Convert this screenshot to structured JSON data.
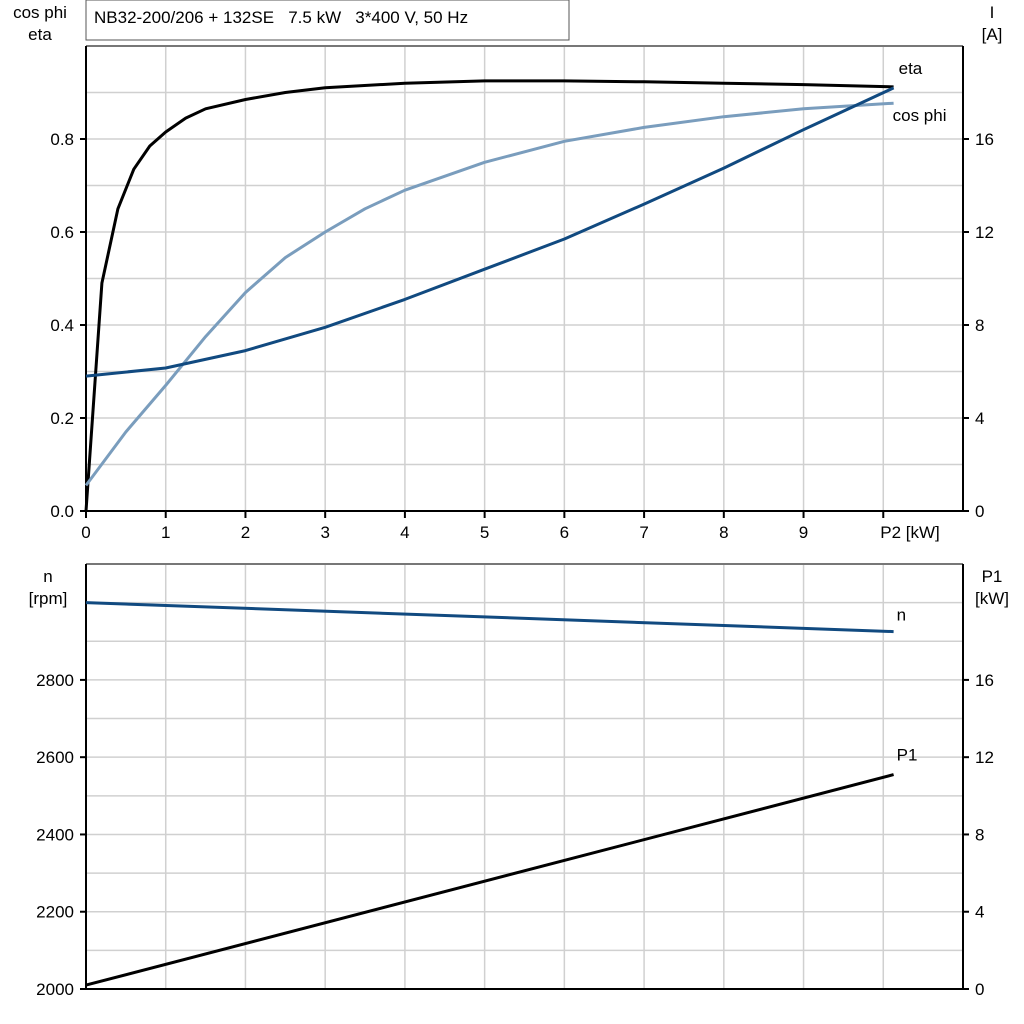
{
  "title": "NB32-200/206 + 132SE   7.5 kW   3*400 V, 50 Hz",
  "colors": {
    "eta": "#000000",
    "cos_phi": "#7a9dbd",
    "current": "#114a80",
    "n": "#114a80",
    "p1": "#000000",
    "grid": "#d0d0d0"
  },
  "chart_data": [
    {
      "type": "line",
      "xlabel": "P2 [kW]",
      "ylabel_left": [
        "cos phi",
        "eta"
      ],
      "ylabel_right": [
        "I",
        "[A]"
      ],
      "xlim": [
        0,
        11
      ],
      "ylim_left": [
        0,
        1.0
      ],
      "ylim_right": [
        0,
        20
      ],
      "x_ticks": [
        "0",
        "1",
        "2",
        "3",
        "4",
        "5",
        "6",
        "7",
        "8",
        "9"
      ],
      "y_ticks_left": [
        "0.0",
        "0.2",
        "0.4",
        "0.6",
        "0.8"
      ],
      "y_ticks_right": [
        "0",
        "4",
        "8",
        "12",
        "16"
      ],
      "grid": true,
      "series": [
        {
          "name": "eta",
          "axis": "left",
          "x": [
            0,
            0.2,
            0.4,
            0.6,
            0.8,
            1,
            1.25,
            1.5,
            2,
            2.5,
            3,
            4,
            5,
            6,
            7,
            8,
            9,
            10.13
          ],
          "y": [
            0,
            0.49,
            0.65,
            0.735,
            0.785,
            0.815,
            0.845,
            0.865,
            0.885,
            0.9,
            0.91,
            0.92,
            0.925,
            0.925,
            0.923,
            0.92,
            0.917,
            0.912
          ]
        },
        {
          "name": "cos phi",
          "axis": "left",
          "x": [
            0,
            0.5,
            1,
            1.5,
            2,
            2.5,
            3,
            3.5,
            4,
            5,
            6,
            7,
            8,
            9,
            10.13
          ],
          "y": [
            0.055,
            0.17,
            0.27,
            0.375,
            0.47,
            0.545,
            0.6,
            0.65,
            0.69,
            0.75,
            0.795,
            0.825,
            0.848,
            0.865,
            0.877
          ]
        },
        {
          "name": "I",
          "axis": "right",
          "x": [
            0,
            1,
            2,
            3,
            4,
            5,
            6,
            7,
            8,
            9,
            10.13
          ],
          "y": [
            5.8,
            6.15,
            6.9,
            7.9,
            9.1,
            10.4,
            11.7,
            13.2,
            14.75,
            16.4,
            18.2
          ]
        }
      ]
    },
    {
      "type": "line",
      "ylabel_left": [
        "n",
        "[rpm]"
      ],
      "ylabel_right": [
        "P1",
        "[kW]"
      ],
      "xlim": [
        0,
        11
      ],
      "ylim_left": [
        2000,
        3100
      ],
      "ylim_right": [
        0,
        22
      ],
      "y_ticks_left": [
        "2000",
        "2200",
        "2400",
        "2600",
        "2800"
      ],
      "y_ticks_right": [
        "0",
        "4",
        "8",
        "12",
        "16"
      ],
      "grid": true,
      "series": [
        {
          "name": "n",
          "axis": "left",
          "x": [
            0,
            10.13
          ],
          "y": [
            3000,
            2925
          ]
        },
        {
          "name": "P1",
          "axis": "right",
          "x": [
            0,
            10.13
          ],
          "y": [
            0.2,
            11.1
          ]
        }
      ]
    }
  ]
}
